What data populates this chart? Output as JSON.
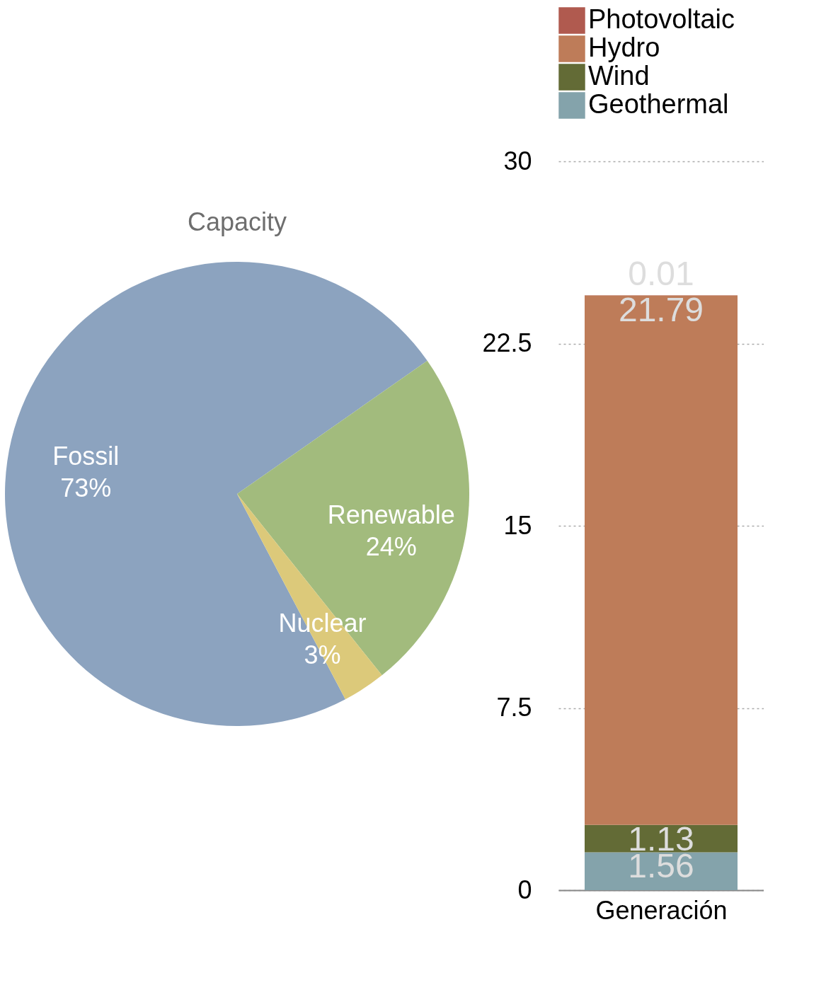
{
  "chart_data": [
    {
      "type": "pie",
      "title": "Capacity",
      "categories": [
        "Fossil",
        "Renewable",
        "Nuclear"
      ],
      "values": [
        73,
        24,
        3
      ],
      "value_labels": [
        "73%",
        "24%",
        "3%"
      ],
      "colors": [
        "#8ca3bf",
        "#a2bb7d",
        "#dcc97a"
      ]
    },
    {
      "type": "bar",
      "stacked": true,
      "categories": [
        "Generación"
      ],
      "ylim": [
        0,
        30
      ],
      "yticks": [
        0,
        7.5,
        15,
        22.5,
        30
      ],
      "grid": "y",
      "legend": "top",
      "data_labels": true,
      "series": [
        {
          "name": "Geothermal",
          "color": "#84a3ab",
          "values": [
            1.56
          ]
        },
        {
          "name": "Wind",
          "color": "#636b36",
          "values": [
            1.13
          ]
        },
        {
          "name": "Hydro",
          "color": "#be7c59",
          "values": [
            21.79
          ]
        },
        {
          "name": "Photovoltaic",
          "color": "#b05a4f",
          "values": [
            0.01
          ]
        }
      ]
    }
  ]
}
